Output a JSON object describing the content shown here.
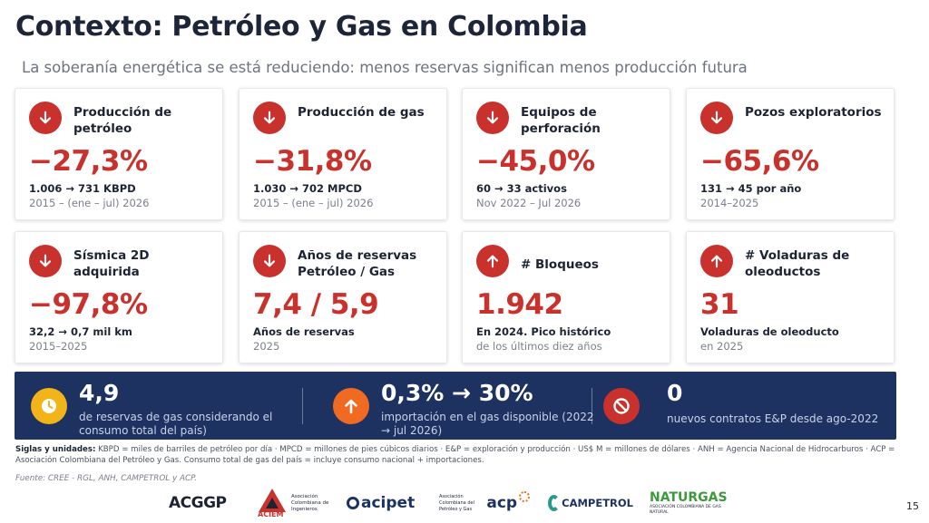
{
  "header": {
    "title": "Contexto: Petróleo y Gas en Colombia",
    "subtitle": "La soberanía energética se está reduciendo: menos reservas significan menos producción futura"
  },
  "cards": [
    {
      "label": "Producción de petróleo",
      "value": "−27,3%",
      "detail": "1.006 → 731 KBPD",
      "period": "2015 – (ene – jul) 2026",
      "icon": "arrow-down-icon"
    },
    {
      "label": "Producción de gas",
      "value": "−31,8%",
      "detail": "1.030 → 702 MPCD",
      "period": "2015 – (ene – jul) 2026",
      "icon": "arrow-down-icon"
    },
    {
      "label": "Equipos de perforación",
      "value": "−45,0%",
      "detail": "60 → 33 activos",
      "period": "Nov 2022 – Jul 2026",
      "icon": "arrow-down-icon"
    },
    {
      "label": "Pozos exploratorios",
      "value": "−65,6%",
      "detail": "131 → 45 por año",
      "period": "2014–2025",
      "icon": "arrow-down-icon"
    },
    {
      "label": "Sísmica 2D adquirida",
      "value": "−97,8%",
      "detail": "32,2 → 0,7 mil km",
      "period": "2015–2025",
      "icon": "arrow-down-icon"
    },
    {
      "label": "Años de reservas Petróleo / Gas",
      "value": "7,4 / 5,9",
      "detail": "Años de reservas",
      "period": "2025",
      "icon": "arrow-down-icon"
    },
    {
      "label": "# Bloqueos",
      "value": "1.942",
      "detail": "En 2024. Pico histórico",
      "period": "de los últimos diez años",
      "icon": "arrow-up-icon"
    },
    {
      "label": "# Voladuras de oleoductos",
      "value": "31",
      "detail": "Voladuras de oleoducto",
      "period": "en 2025",
      "icon": "arrow-up-icon"
    }
  ],
  "band": [
    {
      "value": "4,9",
      "text": "de reservas de gas considerando el consumo total del país)",
      "icon": "clock-icon",
      "color": "#f2b418"
    },
    {
      "value": "0,3% → 30%",
      "text": "importación en el gas disponible (2022 → jul 2026)",
      "icon": "arrow-up-icon",
      "color": "#f06a22"
    },
    {
      "value": "0",
      "text": "nuevos contratos E&P desde ago-2022",
      "icon": "prohibited-icon",
      "color": "#c9312c"
    }
  ],
  "footnote": {
    "siglas_label": "Siglas y unidades:",
    "siglas_text": "KBPD = miles de barriles de petróleo por día · MPCD = millones de pies cúbicos diarios · E&P = exploración y producción · US$ M = millones de dólares · ANH = Agencia Nacional de Hidrocarburos · ACP = Asociación Colombiana del Petróleo y Gas. Consumo total de gas del país = incluye consumo nacional + importaciones.",
    "fuente": "Fuente: CREE - RGL, ANH, CAMPETROL y ACP."
  },
  "logos": {
    "acgp": "ACGGP",
    "aciem": "ACIEM",
    "aciem_sub": "Asociación Colombiana de Ingenieros",
    "acipet": "acipet",
    "acp": "acp",
    "acp_sub": "Asociación Colombiana del Petróleo y Gas",
    "campetrol": "CAMPETROL",
    "naturgas": "NATURGAS",
    "naturgas_sub": "ASOCIACIÓN COLOMBIANA DE GAS NATURAL"
  },
  "page_number": "15",
  "colors": {
    "accent_red": "#c9312c",
    "navy": "#1e3262",
    "yellow": "#f2b418",
    "orange": "#f06a22"
  }
}
